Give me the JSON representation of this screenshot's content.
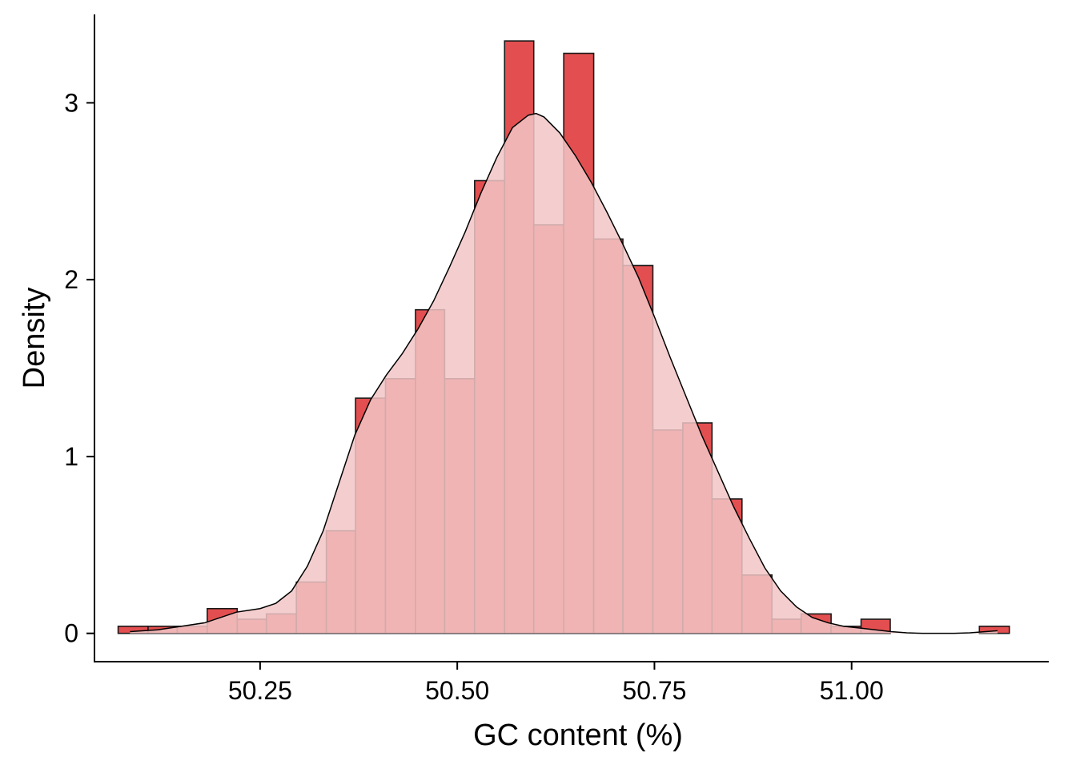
{
  "chart_data": {
    "type": "bar",
    "subtype": "histogram_with_density",
    "xlabel": "GC content (%)",
    "ylabel": "Density",
    "xlim": [
      50.04,
      51.25
    ],
    "ylim": [
      -0.16,
      3.5
    ],
    "x_ticks": [
      50.25,
      50.5,
      50.75,
      51.0
    ],
    "x_tick_labels": [
      "50.25",
      "50.50",
      "50.75",
      "51.00"
    ],
    "y_ticks": [
      0,
      1,
      2,
      3
    ],
    "y_tick_labels": [
      "0",
      "1",
      "2",
      "3"
    ],
    "grid": false,
    "legend": "none",
    "colors": {
      "bar_fill": "#e34f50",
      "bar_outline": "#1a1a1a",
      "density_fill": "#f2c6c6",
      "density_line": "#000000"
    },
    "bins": [
      {
        "x0": 50.07,
        "x1": 50.108,
        "density": 0.04
      },
      {
        "x0": 50.108,
        "x1": 50.145,
        "density": 0.04
      },
      {
        "x0": 50.145,
        "x1": 50.183,
        "density": 0.04
      },
      {
        "x0": 50.183,
        "x1": 50.221,
        "density": 0.14
      },
      {
        "x0": 50.221,
        "x1": 50.258,
        "density": 0.08
      },
      {
        "x0": 50.258,
        "x1": 50.296,
        "density": 0.11
      },
      {
        "x0": 50.296,
        "x1": 50.334,
        "density": 0.29
      },
      {
        "x0": 50.334,
        "x1": 50.371,
        "density": 0.58
      },
      {
        "x0": 50.371,
        "x1": 50.409,
        "density": 1.33
      },
      {
        "x0": 50.409,
        "x1": 50.447,
        "density": 1.44
      },
      {
        "x0": 50.447,
        "x1": 50.484,
        "density": 1.83
      },
      {
        "x0": 50.484,
        "x1": 50.522,
        "density": 1.44
      },
      {
        "x0": 50.522,
        "x1": 50.56,
        "density": 2.56
      },
      {
        "x0": 50.56,
        "x1": 50.597,
        "density": 3.35
      },
      {
        "x0": 50.597,
        "x1": 50.635,
        "density": 2.31
      },
      {
        "x0": 50.635,
        "x1": 50.673,
        "density": 3.28
      },
      {
        "x0": 50.673,
        "x1": 50.71,
        "density": 2.23
      },
      {
        "x0": 50.71,
        "x1": 50.748,
        "density": 2.08
      },
      {
        "x0": 50.748,
        "x1": 50.786,
        "density": 1.15
      },
      {
        "x0": 50.786,
        "x1": 50.823,
        "density": 1.19
      },
      {
        "x0": 50.823,
        "x1": 50.861,
        "density": 0.76
      },
      {
        "x0": 50.861,
        "x1": 50.899,
        "density": 0.33
      },
      {
        "x0": 50.899,
        "x1": 50.936,
        "density": 0.08
      },
      {
        "x0": 50.936,
        "x1": 50.974,
        "density": 0.11
      },
      {
        "x0": 50.974,
        "x1": 51.012,
        "density": 0.04
      },
      {
        "x0": 51.012,
        "x1": 51.049,
        "density": 0.08
      },
      {
        "x0": 51.049,
        "x1": 51.087,
        "density": 0.0
      },
      {
        "x0": 51.087,
        "x1": 51.125,
        "density": 0.0
      },
      {
        "x0": 51.125,
        "x1": 51.162,
        "density": 0.0
      },
      {
        "x0": 51.162,
        "x1": 51.2,
        "density": 0.04
      }
    ],
    "density_curve": {
      "x": [
        50.085,
        50.12,
        50.15,
        50.18,
        50.2,
        50.22,
        50.25,
        50.27,
        50.29,
        50.31,
        50.33,
        50.35,
        50.37,
        50.39,
        50.41,
        50.43,
        50.45,
        50.47,
        50.49,
        50.51,
        50.53,
        50.55,
        50.57,
        50.59,
        50.6,
        50.61,
        50.63,
        50.65,
        50.67,
        50.69,
        50.71,
        50.73,
        50.75,
        50.77,
        50.79,
        50.81,
        50.83,
        50.85,
        50.87,
        50.89,
        50.91,
        50.93,
        50.95,
        50.97,
        50.99,
        51.01,
        51.03,
        51.05,
        51.07,
        51.09,
        51.11,
        51.13,
        51.15,
        51.17,
        51.185
      ],
      "y": [
        0.01,
        0.02,
        0.04,
        0.06,
        0.09,
        0.12,
        0.14,
        0.17,
        0.24,
        0.38,
        0.58,
        0.85,
        1.12,
        1.32,
        1.46,
        1.58,
        1.72,
        1.88,
        2.07,
        2.27,
        2.49,
        2.69,
        2.86,
        2.93,
        2.94,
        2.92,
        2.83,
        2.7,
        2.55,
        2.38,
        2.2,
        2.01,
        1.79,
        1.56,
        1.34,
        1.12,
        0.92,
        0.72,
        0.54,
        0.37,
        0.24,
        0.15,
        0.09,
        0.06,
        0.04,
        0.03,
        0.02,
        0.01,
        0.003,
        0.0,
        0.0,
        0.0,
        0.003,
        0.01,
        0.015
      ]
    }
  }
}
